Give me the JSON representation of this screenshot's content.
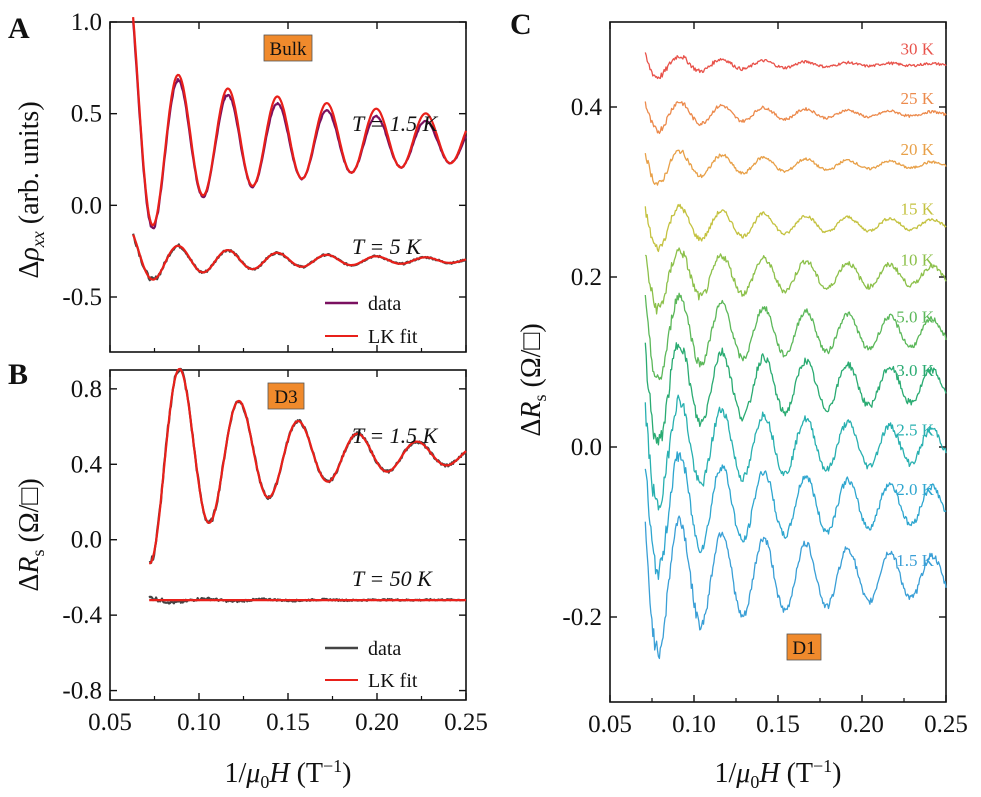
{
  "figure": {
    "panels": [
      "A",
      "B",
      "C"
    ]
  },
  "chart_data": [
    {
      "panel": "A",
      "type": "line",
      "badge": "Bulk",
      "ylabel": "Δρxx (arb. units)",
      "xlabel": "1/μ0H (T−1)",
      "xlim": [
        0.05,
        0.25
      ],
      "ylim": [
        -0.8,
        1.0
      ],
      "xticks": [
        "0.05",
        "0.10",
        "0.15",
        "0.20",
        "0.25"
      ],
      "yticks": [
        {
          "v": 1.0,
          "label": "1.0"
        },
        {
          "v": 0.5,
          "label": "0.5"
        },
        {
          "v": 0.0,
          "label": "0.0"
        },
        {
          "v": -0.5,
          "label": "-0.5"
        }
      ],
      "annotations": [
        "T = 1.5 K",
        "T = 5 K"
      ],
      "legend": [
        "data",
        "LK fit"
      ],
      "series": [
        {
          "name": "T = 1.5 K data",
          "color": "#7a1060",
          "x0": 0.063,
          "offset": 0.34,
          "amp": 0.38,
          "freq": 36,
          "phase": 0.5,
          "damp": 7,
          "decay": 0.14,
          "startEnv": 2.0,
          "noise": 0.004,
          "xend": 0.25
        },
        {
          "name": "T = 1.5 K LK fit",
          "color": "#e8201a",
          "x0": 0.063,
          "offset": 0.36,
          "amp": 0.38,
          "freq": 36,
          "phase": 0.5,
          "damp": 6,
          "decay": 0.14,
          "startEnv": 2.0,
          "noise": 0,
          "xend": 0.25
        },
        {
          "name": "T = 5 K data",
          "color": "#444444",
          "x0": 0.063,
          "offset": -0.3,
          "amp": 0.1,
          "freq": 36,
          "phase": 0.5,
          "damp": 11,
          "decay": 0.12,
          "startEnv": 1.6,
          "noise": 0.005,
          "xend": 0.25
        },
        {
          "name": "T = 5 K LK fit",
          "color": "#e8201a",
          "x0": 0.063,
          "offset": -0.3,
          "amp": 0.1,
          "freq": 36,
          "phase": 0.5,
          "damp": 11,
          "decay": 0.12,
          "startEnv": 1.6,
          "noise": 0,
          "xend": 0.25
        }
      ]
    },
    {
      "panel": "B",
      "type": "line",
      "badge": "D3",
      "ylabel": "ΔRs (Ω/□)",
      "xlabel": "1/μ0H (T−1)",
      "xlim": [
        0.05,
        0.25
      ],
      "ylim": [
        -0.85,
        0.9
      ],
      "xticks": [
        "0.05",
        "0.10",
        "0.15",
        "0.20",
        "0.25"
      ],
      "xtick_values": [
        0.05,
        0.1,
        0.15,
        0.2,
        0.25
      ],
      "yticks": [
        {
          "v": 0.8,
          "label": "0.8"
        },
        {
          "v": 0.4,
          "label": "0.4"
        },
        {
          "v": 0.0,
          "label": "0.0"
        },
        {
          "v": -0.4,
          "label": "-0.4"
        },
        {
          "v": -0.8,
          "label": "-0.8"
        }
      ],
      "annotations": [
        "T = 1.5 K",
        "T = 50 K"
      ],
      "legend": [
        "data",
        "LK fit"
      ],
      "series": [
        {
          "name": "T = 1.5 K data",
          "color": "#444444",
          "x0": 0.072,
          "offset": 0.45,
          "amp": 0.58,
          "freq": 30,
          "phase": 3.0,
          "damp": 14,
          "decay": 0.2,
          "startEnv": 1.0,
          "noise": 0.008,
          "xend": 0.25
        },
        {
          "name": "T = 1.5 K LK fit",
          "color": "#e8201a",
          "x0": 0.072,
          "offset": 0.45,
          "amp": 0.58,
          "freq": 30,
          "phase": 3.0,
          "damp": 14,
          "decay": 0.2,
          "startEnv": 1.0,
          "noise": 0,
          "xend": 0.25
        },
        {
          "name": "T = 50 K data",
          "color": "#444444",
          "x0": 0.072,
          "offset": -0.32,
          "amp": 0.015,
          "freq": 30,
          "phase": 0.3,
          "damp": 20,
          "decay": 0.1,
          "startEnv": 1.0,
          "noise": 0.004,
          "xend": 0.25,
          "slope": 0.12
        },
        {
          "name": "T = 50 K LK fit",
          "color": "#e8201a",
          "x0": 0.072,
          "offset": -0.32,
          "amp": 0.0,
          "freq": 30,
          "phase": 0,
          "damp": 0,
          "decay": 0.1,
          "startEnv": 1.0,
          "noise": 0,
          "xend": 0.25
        }
      ]
    },
    {
      "panel": "C",
      "type": "line",
      "badge": "D1",
      "ylabel": "ΔRs (Ω/□)",
      "xlabel": "1/μ0H (T−1)",
      "xlim": [
        0.05,
        0.25
      ],
      "ylim": [
        -0.3,
        0.5
      ],
      "xticks": [
        "0.05",
        "0.10",
        "0.15",
        "0.20",
        "0.25"
      ],
      "xtick_values": [
        0.05,
        0.1,
        0.15,
        0.2,
        0.25
      ],
      "yticks": [
        {
          "v": 0.4,
          "label": "0.4"
        },
        {
          "v": 0.2,
          "label": "0.2"
        },
        {
          "v": 0.0,
          "label": "0.0"
        },
        {
          "v": -0.2,
          "label": "-0.2"
        }
      ],
      "series": [
        {
          "name": "30 K",
          "color": "#e8524a",
          "x0": 0.071,
          "offset": 0.45,
          "amp": 0.012,
          "startEnv": 1.8,
          "damp": 14,
          "freq": 40,
          "phase": 1.1,
          "noise": 0.0015,
          "decay": 0.12,
          "xend": 0.25
        },
        {
          "name": "25 K",
          "color": "#ec8a4c",
          "x0": 0.071,
          "offset": 0.392,
          "amp": 0.016,
          "startEnv": 1.8,
          "damp": 11,
          "freq": 40,
          "phase": 1.1,
          "noise": 0.0015,
          "decay": 0.12,
          "xend": 0.25
        },
        {
          "name": "20 K",
          "color": "#e8a048",
          "x0": 0.071,
          "offset": 0.332,
          "amp": 0.018,
          "startEnv": 1.8,
          "damp": 10,
          "freq": 40,
          "phase": 1.1,
          "noise": 0.0015,
          "decay": 0.12,
          "xend": 0.25
        },
        {
          "name": "15 K",
          "color": "#c4c240",
          "x0": 0.071,
          "offset": 0.262,
          "amp": 0.022,
          "startEnv": 1.8,
          "damp": 8,
          "freq": 40,
          "phase": 1.1,
          "noise": 0.0018,
          "decay": 0.12,
          "xend": 0.25
        },
        {
          "name": "10 K",
          "color": "#8cc04a",
          "x0": 0.071,
          "offset": 0.202,
          "amp": 0.03,
          "startEnv": 1.8,
          "damp": 6,
          "freq": 40,
          "phase": 1.1,
          "noise": 0.003,
          "decay": 0.12,
          "xend": 0.25
        },
        {
          "name": "5.0 K",
          "color": "#5cb85a",
          "x0": 0.071,
          "offset": 0.135,
          "amp": 0.044,
          "startEnv": 1.8,
          "damp": 6,
          "freq": 40,
          "phase": 1.1,
          "noise": 0.003,
          "decay": 0.12,
          "xend": 0.25
        },
        {
          "name": "3.0 K",
          "color": "#2aab72",
          "x0": 0.071,
          "offset": 0.072,
          "amp": 0.052,
          "startEnv": 1.8,
          "damp": 6,
          "freq": 40,
          "phase": 1.1,
          "noise": 0.004,
          "decay": 0.12,
          "xend": 0.25
        },
        {
          "name": "2.5 K",
          "color": "#28b0b0",
          "x0": 0.071,
          "offset": 0.002,
          "amp": 0.055,
          "startEnv": 1.8,
          "damp": 6,
          "freq": 40,
          "phase": 1.1,
          "noise": 0.004,
          "decay": 0.12,
          "xend": 0.25
        },
        {
          "name": "2.0 K",
          "color": "#2ea6cf",
          "x0": 0.071,
          "offset": -0.068,
          "amp": 0.06,
          "startEnv": 1.8,
          "damp": 6,
          "freq": 40,
          "phase": 1.1,
          "noise": 0.004,
          "decay": 0.12,
          "xend": 0.25
        },
        {
          "name": "1.5 K",
          "color": "#3a9fd6",
          "x0": 0.071,
          "offset": -0.152,
          "amp": 0.068,
          "startEnv": 1.8,
          "damp": 6,
          "freq": 40,
          "phase": 1.1,
          "noise": 0.004,
          "decay": 0.12,
          "xend": 0.25
        }
      ]
    }
  ]
}
